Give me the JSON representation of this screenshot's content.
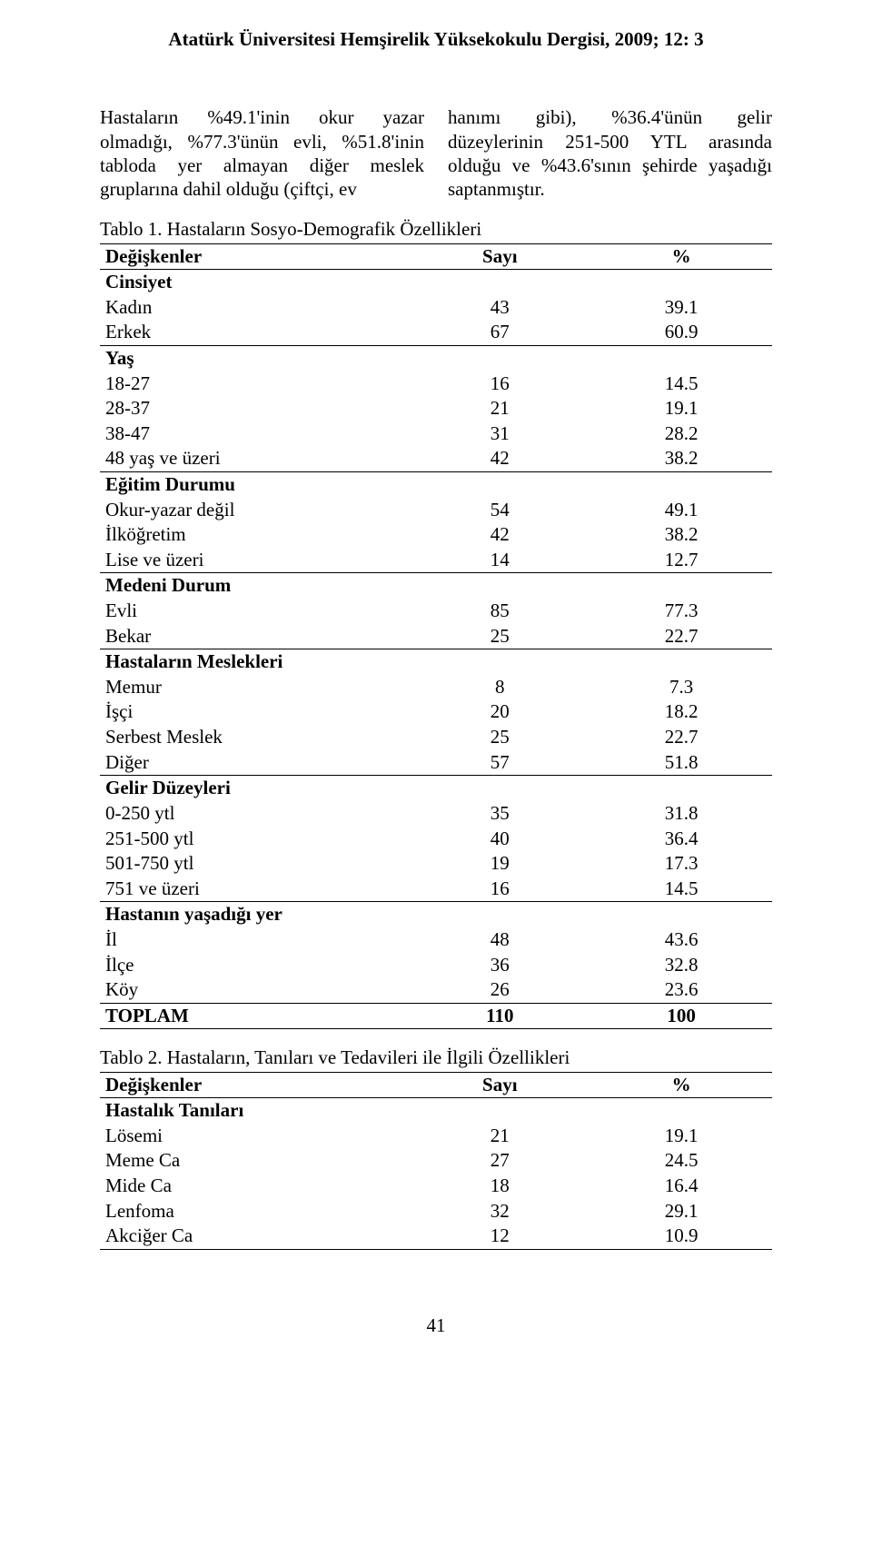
{
  "journal_header": "Atatürk Üniversitesi Hemşirelik Yüksekokulu Dergisi, 2009; 12: 3",
  "intro_left": "Hastaların %49.1'inin okur yazar olmadığı, %77.3'ünün evli, %51.8'inin tabloda yer almayan diğer meslek gruplarına dahil olduğu (çiftçi, ev",
  "intro_right": "hanımı gibi), %36.4'ünün gelir düzeylerinin 251-500 YTL arasında olduğu ve %43.6'sının şehirde yaşadığı saptanmıştır.",
  "table1": {
    "caption": "Tablo 1. Hastaların Sosyo-Demografik Özellikleri",
    "headers": {
      "var": "Değişkenler",
      "sayi": "Sayı",
      "pct": "%"
    },
    "sections": [
      {
        "title": "Cinsiyet",
        "rows": [
          {
            "label": "Kadın",
            "sayi": "43",
            "pct": "39.1"
          },
          {
            "label": "Erkek",
            "sayi": "67",
            "pct": "60.9"
          }
        ]
      },
      {
        "title": "Yaş",
        "rows": [
          {
            "label": "18-27",
            "sayi": "16",
            "pct": "14.5"
          },
          {
            "label": "28-37",
            "sayi": "21",
            "pct": "19.1"
          },
          {
            "label": "38-47",
            "sayi": "31",
            "pct": "28.2"
          },
          {
            "label": "48 yaş ve üzeri",
            "sayi": "42",
            "pct": "38.2"
          }
        ]
      },
      {
        "title": "Eğitim Durumu",
        "rows": [
          {
            "label": "Okur-yazar değil",
            "sayi": "54",
            "pct": "49.1"
          },
          {
            "label": "İlköğretim",
            "sayi": "42",
            "pct": "38.2"
          },
          {
            "label": "Lise ve üzeri",
            "sayi": "14",
            "pct": "12.7"
          }
        ]
      },
      {
        "title": "Medeni Durum",
        "rows": [
          {
            "label": "Evli",
            "sayi": "85",
            "pct": "77.3"
          },
          {
            "label": "Bekar",
            "sayi": "25",
            "pct": "22.7"
          }
        ]
      },
      {
        "title": "Hastaların Meslekleri",
        "rows": [
          {
            "label": "Memur",
            "sayi": "8",
            "pct": "7.3"
          },
          {
            "label": "İşçi",
            "sayi": "20",
            "pct": "18.2"
          },
          {
            "label": "Serbest Meslek",
            "sayi": "25",
            "pct": "22.7"
          },
          {
            "label": "Diğer",
            "sayi": "57",
            "pct": "51.8"
          }
        ]
      },
      {
        "title": "Gelir Düzeyleri",
        "rows": [
          {
            "label": "0-250 ytl",
            "sayi": "35",
            "pct": "31.8"
          },
          {
            "label": "251-500 ytl",
            "sayi": "40",
            "pct": "36.4"
          },
          {
            "label": "501-750 ytl",
            "sayi": "19",
            "pct": "17.3"
          },
          {
            "label": "751 ve üzeri",
            "sayi": "16",
            "pct": "14.5"
          }
        ]
      },
      {
        "title": "Hastanın yaşadığı yer",
        "rows": [
          {
            "label": "İl",
            "sayi": "48",
            "pct": "43.6"
          },
          {
            "label": "İlçe",
            "sayi": "36",
            "pct": "32.8"
          },
          {
            "label": "Köy",
            "sayi": "26",
            "pct": "23.6"
          }
        ]
      }
    ],
    "total": {
      "label": "TOPLAM",
      "sayi": "110",
      "pct": "100"
    }
  },
  "table2": {
    "caption": "Tablo 2. Hastaların, Tanıları ve Tedavileri ile İlgili Özellikleri",
    "headers": {
      "var": "Değişkenler",
      "sayi": "Sayı",
      "pct": "%"
    },
    "sections": [
      {
        "title": "Hastalık Tanıları",
        "rows": [
          {
            "label": "Lösemi",
            "sayi": "21",
            "pct": "19.1"
          },
          {
            "label": "Meme Ca",
            "sayi": "27",
            "pct": "24.5"
          },
          {
            "label": "Mide Ca",
            "sayi": "18",
            "pct": "16.4"
          },
          {
            "label": "Lenfoma",
            "sayi": "32",
            "pct": "29.1"
          },
          {
            "label": "Akciğer Ca",
            "sayi": "12",
            "pct": "10.9"
          }
        ]
      }
    ]
  },
  "page_number": "41"
}
